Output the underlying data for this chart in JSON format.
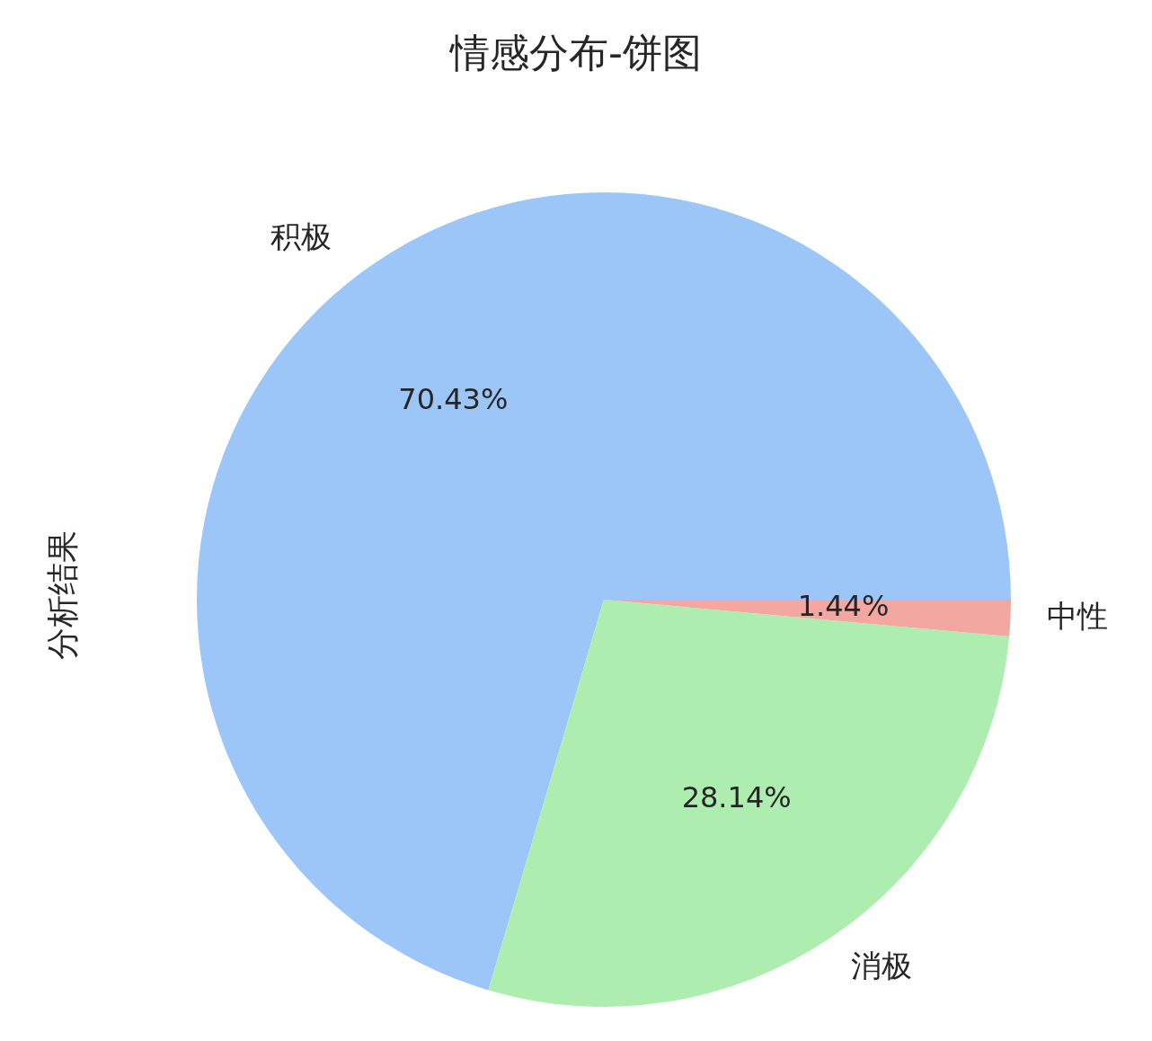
{
  "chart_data": {
    "type": "pie",
    "title": "情感分布-饼图",
    "ylabel": "分析结果",
    "categories": [
      "积极",
      "消极",
      "中性"
    ],
    "values": [
      70.43,
      28.14,
      1.44
    ],
    "colors": [
      "#9bc6f7",
      "#aeedb0",
      "#f2a8a0"
    ],
    "value_labels": [
      "70.43%",
      "28.14%",
      "1.44%"
    ]
  }
}
